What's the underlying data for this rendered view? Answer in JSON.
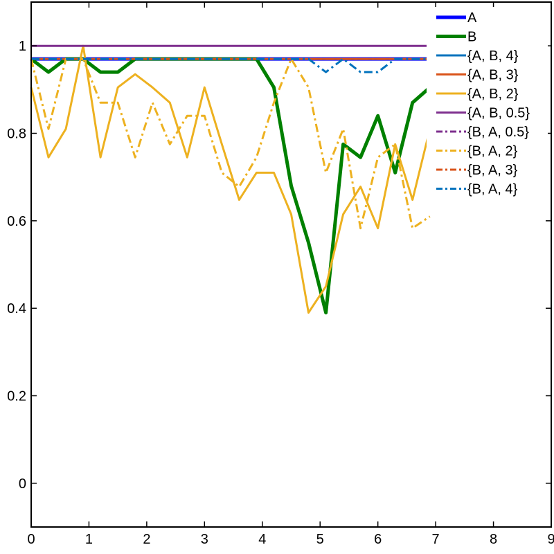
{
  "chart_data": {
    "type": "line",
    "title": "",
    "xlabel": "",
    "ylabel": "",
    "xlim": [
      0,
      9
    ],
    "ylim": [
      -0.1,
      1.1
    ],
    "xticks": [
      "0",
      "1",
      "2",
      "3",
      "4",
      "5",
      "6",
      "7",
      "8",
      "9"
    ],
    "yticks": [
      "0",
      "0.2",
      "0.4",
      "0.6",
      "0.8",
      "1"
    ],
    "legend_position": "top-right",
    "grid": false,
    "x": [
      0,
      0.3,
      0.6,
      0.9,
      1.2,
      1.5,
      1.8,
      2.1,
      2.4,
      2.7,
      3.0,
      3.3,
      3.6,
      3.9,
      4.2,
      4.5,
      4.8,
      5.1,
      5.4,
      5.7,
      6.0,
      6.3,
      6.6,
      6.9
    ],
    "series": [
      {
        "name": "A",
        "color": "#0000ff",
        "width": 5,
        "dash": "solid",
        "values": [
          0.97,
          0.97,
          0.97,
          0.97,
          0.97,
          0.97,
          0.97,
          0.97,
          0.97,
          0.97,
          0.97,
          0.97,
          0.97,
          0.97,
          0.97,
          0.97,
          0.97,
          0.97,
          0.97,
          0.97,
          0.97,
          0.97,
          0.97,
          0.97
        ]
      },
      {
        "name": "B",
        "color": "#008000",
        "width": 5,
        "dash": "solid",
        "values": [
          0.97,
          0.94,
          0.97,
          0.97,
          0.94,
          0.94,
          0.97,
          0.97,
          0.97,
          0.97,
          0.97,
          0.97,
          0.97,
          0.97,
          0.905,
          0.68,
          0.55,
          0.39,
          0.775,
          0.745,
          0.84,
          0.71,
          0.87,
          0.905
        ]
      },
      {
        "name": "{A, B, 4}",
        "color": "#0072bd",
        "width": 3,
        "dash": "solid",
        "values": [
          0.97,
          0.97,
          0.97,
          0.97,
          0.97,
          0.97,
          0.97,
          0.97,
          0.97,
          0.97,
          0.97,
          0.97,
          0.97,
          0.97,
          0.97,
          0.97,
          0.97,
          0.97,
          0.97,
          0.97,
          0.97,
          0.97,
          0.97,
          0.97
        ]
      },
      {
        "name": "{A, B, 3}",
        "color": "#d95319",
        "width": 3,
        "dash": "solid",
        "values": [
          0.97,
          0.97,
          0.97,
          0.97,
          0.97,
          0.97,
          0.97,
          0.97,
          0.97,
          0.97,
          0.97,
          0.97,
          0.97,
          0.97,
          0.97,
          0.97,
          0.97,
          0.97,
          0.97,
          0.97,
          0.97,
          0.97,
          0.97,
          0.97
        ]
      },
      {
        "name": "{A, B, 2}",
        "color": "#edb120",
        "width": 3,
        "dash": "solid",
        "values": [
          0.905,
          0.745,
          0.81,
          1.0,
          0.745,
          0.905,
          0.935,
          0.905,
          0.87,
          0.745,
          0.905,
          0.775,
          0.648,
          0.71,
          0.71,
          0.615,
          0.39,
          0.45,
          0.615,
          0.678,
          0.583,
          0.775,
          0.648,
          0.81
        ]
      },
      {
        "name": "{A, B, 0.5}",
        "color": "#7e2f8e",
        "width": 3,
        "dash": "solid",
        "values": [
          1,
          1,
          1,
          1,
          1,
          1,
          1,
          1,
          1,
          1,
          1,
          1,
          1,
          1,
          1,
          1,
          1,
          1,
          1,
          1,
          1,
          1,
          1,
          1
        ]
      },
      {
        "name": "{B, A, 0.5}",
        "color": "#7e2f8e",
        "width": 3,
        "dash": "dashdot",
        "values": [
          0.97,
          0.97,
          0.97,
          0.97,
          0.97,
          0.97,
          0.97,
          0.97,
          0.97,
          0.97,
          0.97,
          0.97,
          0.97,
          0.97,
          0.97,
          0.97,
          0.97,
          0.97,
          0.97,
          0.97,
          0.97,
          0.97,
          0.97,
          0.97
        ]
      },
      {
        "name": "{B, A, 2}",
        "color": "#edb120",
        "width": 3,
        "dash": "dashdot",
        "values": [
          0.97,
          0.81,
          0.97,
          0.97,
          0.87,
          0.87,
          0.745,
          0.87,
          0.775,
          0.84,
          0.84,
          0.71,
          0.678,
          0.745,
          0.87,
          0.97,
          0.905,
          0.71,
          0.81,
          0.583,
          0.745,
          0.775,
          0.583,
          0.61
        ]
      },
      {
        "name": "{B, A, 3}",
        "color": "#d95319",
        "width": 3,
        "dash": "dashdot",
        "values": [
          0.97,
          0.97,
          0.97,
          0.97,
          0.97,
          0.97,
          0.97,
          0.97,
          0.97,
          0.97,
          0.97,
          0.97,
          0.97,
          0.97,
          0.97,
          0.97,
          0.97,
          0.97,
          0.97,
          0.97,
          0.97,
          0.97,
          0.97,
          0.97
        ]
      },
      {
        "name": "{B, A, 4}",
        "color": "#0072bd",
        "width": 3,
        "dash": "dashdot",
        "values": [
          0.97,
          0.97,
          0.97,
          0.97,
          0.97,
          0.97,
          0.97,
          0.97,
          0.97,
          0.97,
          0.97,
          0.97,
          0.97,
          0.97,
          0.97,
          0.97,
          0.97,
          0.94,
          0.97,
          0.94,
          0.94,
          0.97,
          0.97,
          0.97
        ]
      }
    ]
  }
}
